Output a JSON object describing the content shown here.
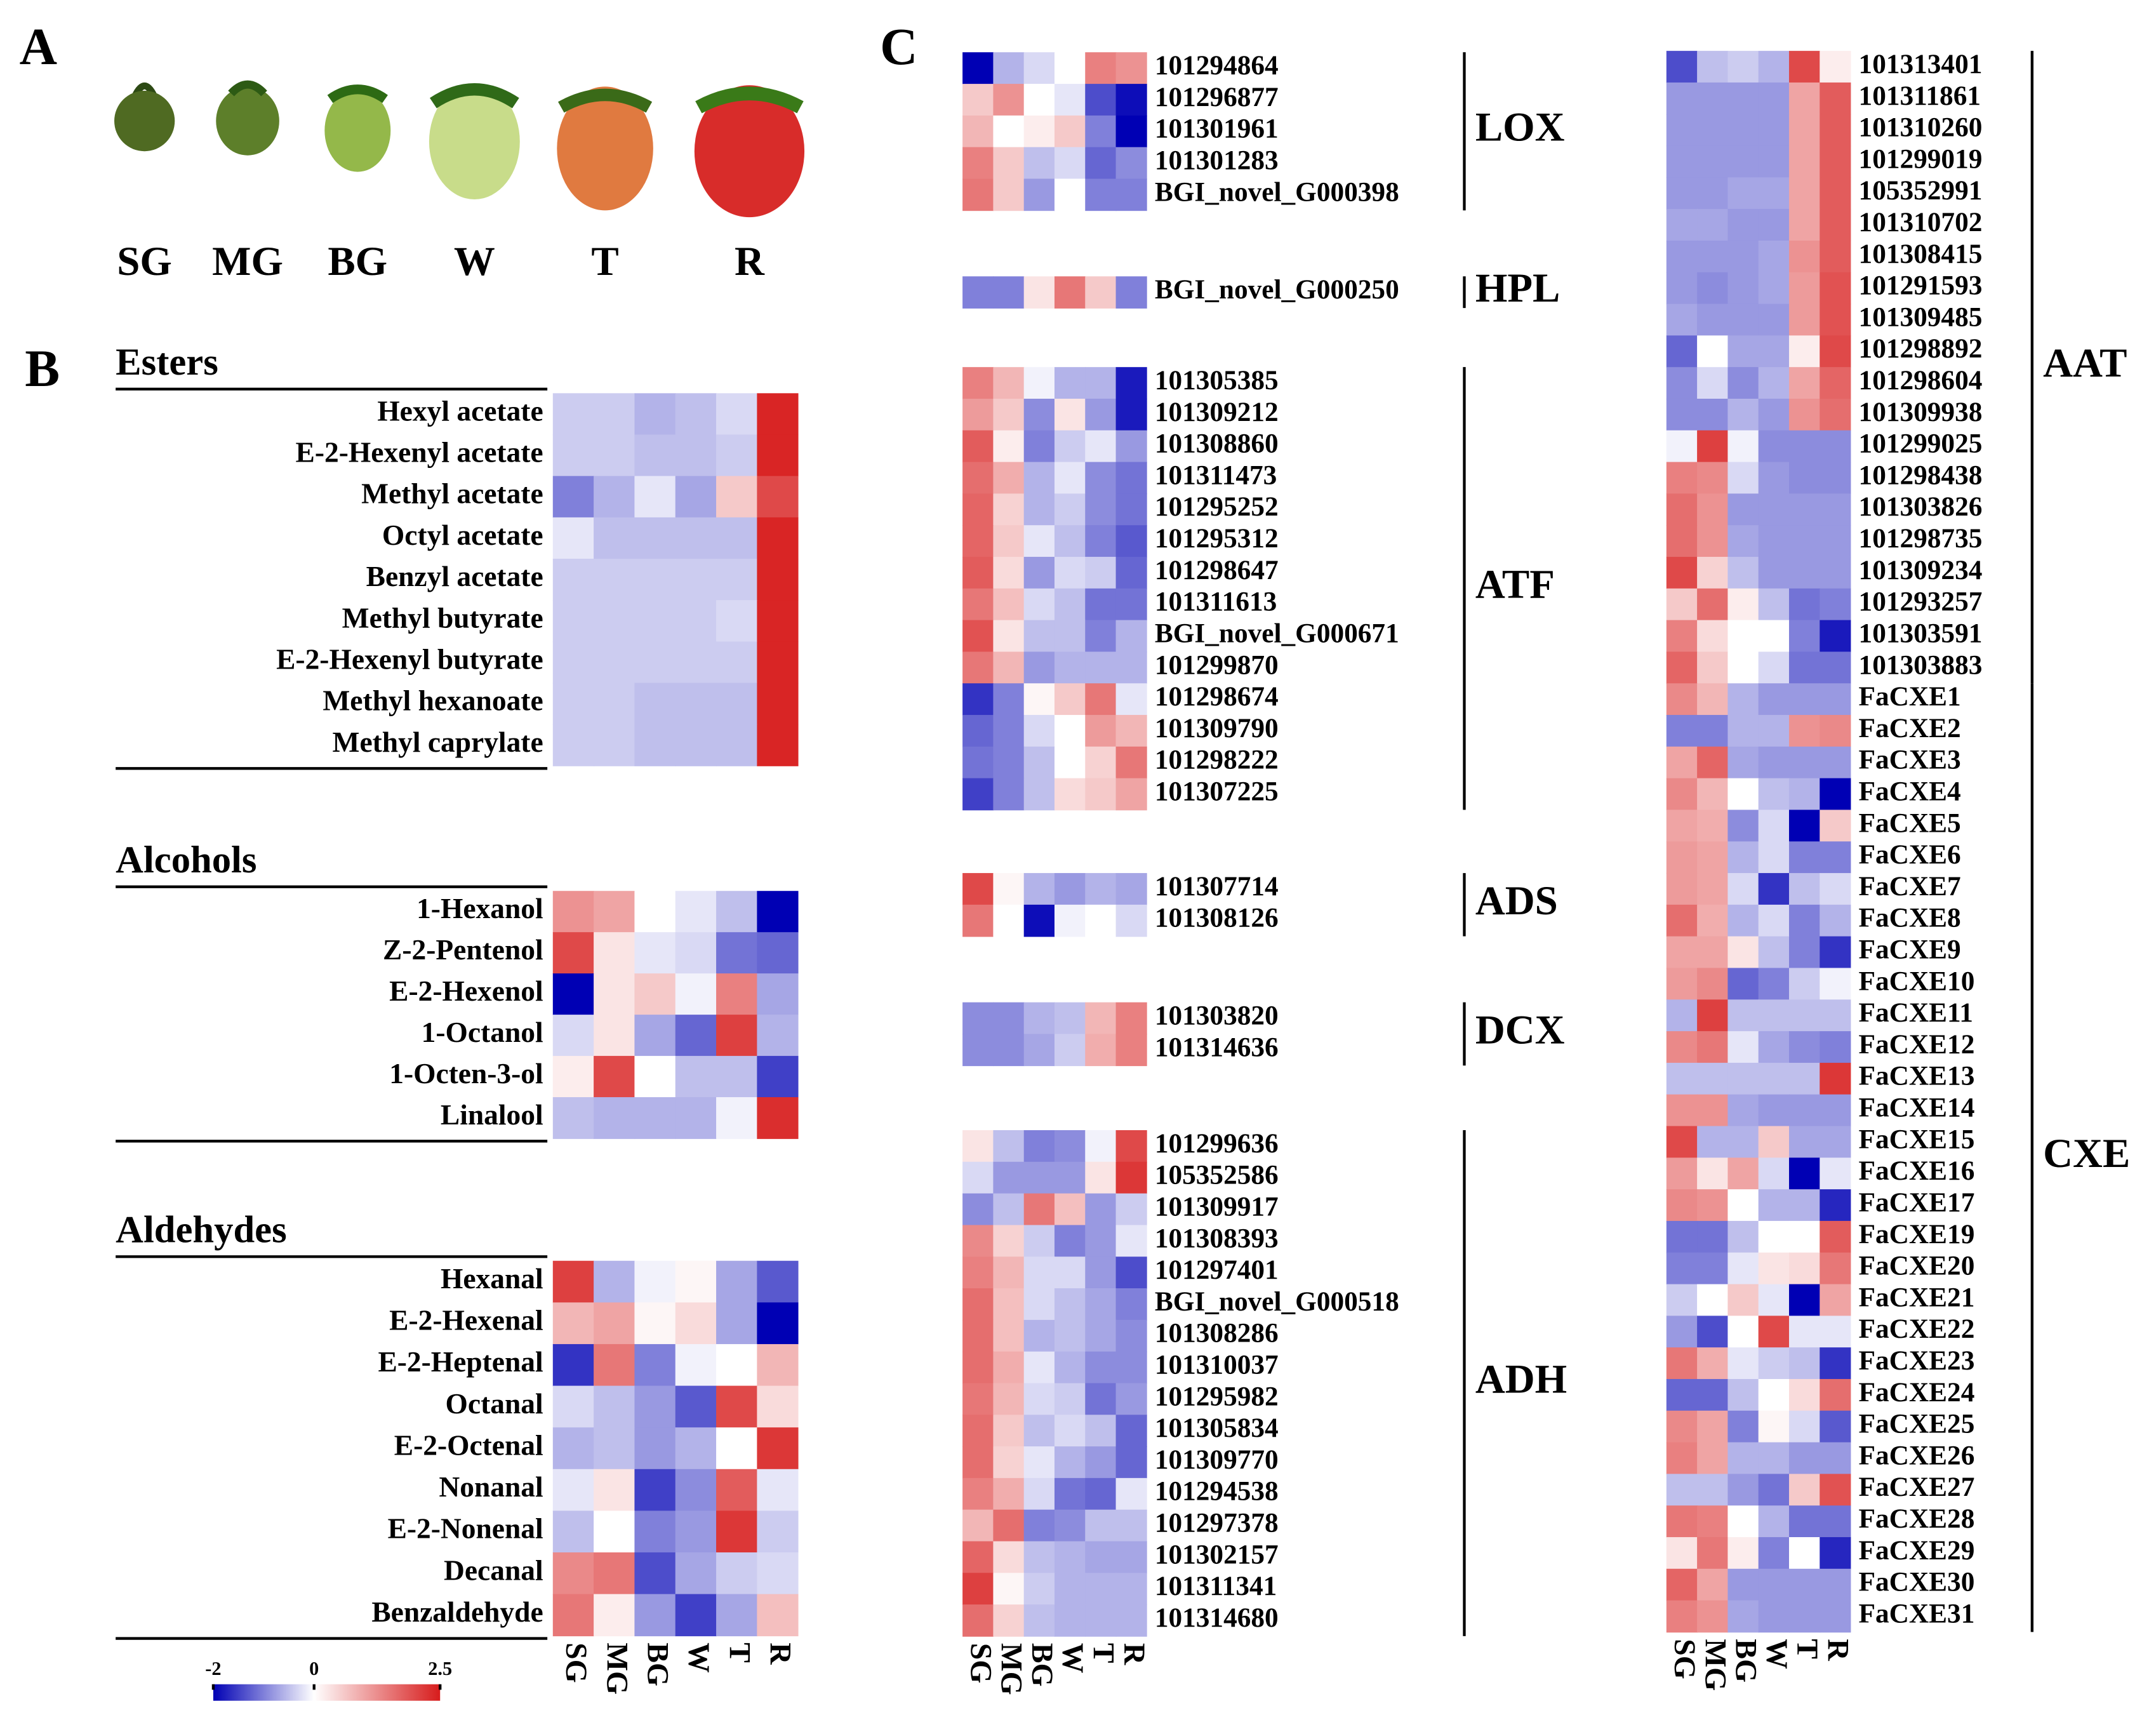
{
  "panels": [
    "A",
    "B",
    "C"
  ],
  "stages": [
    "SG",
    "MG",
    "BG",
    "W",
    "T",
    "R"
  ],
  "colorbar": {
    "lim": [
      -2,
      2.5
    ],
    "ticks": [
      -2,
      0,
      2.5
    ],
    "colors": {
      "low": "#0000b4",
      "mid": "#ffffff",
      "high": "#d71c1c"
    }
  },
  "chart_data": [
    {
      "type": "heatmap",
      "title": "Esters",
      "rows": [
        "Hexyl acetate",
        "E-2-Hexenyl acetate",
        "Methyl acetate",
        "Octyl acetate",
        "Benzyl acetate",
        "Methyl butyrate",
        "E-2-Hexenyl butyrate",
        "Methyl hexanoate",
        "Methyl caprylate"
      ],
      "values": [
        [
          -0.4,
          -0.4,
          -0.6,
          -0.5,
          -0.3,
          2.4
        ],
        [
          -0.4,
          -0.4,
          -0.5,
          -0.5,
          -0.4,
          2.4
        ],
        [
          -1.0,
          -0.6,
          -0.2,
          -0.7,
          0.6,
          2.0
        ],
        [
          -0.2,
          -0.5,
          -0.5,
          -0.5,
          -0.5,
          2.4
        ],
        [
          -0.4,
          -0.4,
          -0.4,
          -0.4,
          -0.4,
          2.4
        ],
        [
          -0.4,
          -0.4,
          -0.4,
          -0.4,
          -0.3,
          2.4
        ],
        [
          -0.4,
          -0.4,
          -0.4,
          -0.4,
          -0.4,
          2.4
        ],
        [
          -0.4,
          -0.4,
          -0.5,
          -0.5,
          -0.5,
          2.4
        ],
        [
          -0.4,
          -0.4,
          -0.5,
          -0.5,
          -0.5,
          2.4
        ]
      ]
    },
    {
      "type": "heatmap",
      "title": "Alcohols",
      "rows": [
        "1-Hexanol",
        "Z-2-Pentenol",
        "E-2-Hexenol",
        "1-Octanol",
        "1-Octen-3-ol",
        "Linalool"
      ],
      "values": [
        [
          1.2,
          1.0,
          0,
          -0.2,
          -0.5,
          -2.0
        ],
        [
          2.0,
          0.3,
          -0.2,
          -0.3,
          -1.1,
          -1.2
        ],
        [
          -2.0,
          0.3,
          0.6,
          -0.1,
          1.4,
          -0.7
        ],
        [
          -0.3,
          0.3,
          -0.7,
          -1.2,
          2.1,
          -0.6
        ],
        [
          0.2,
          2.0,
          0,
          -0.5,
          -0.5,
          -1.5
        ],
        [
          -0.5,
          -0.6,
          -0.6,
          -0.6,
          -0.1,
          2.3
        ]
      ]
    },
    {
      "type": "heatmap",
      "title": "Aldehydes",
      "rows": [
        "Hexanal",
        "E-2-Hexenal",
        "E-2-Heptenal",
        "Octanal",
        "E-2-Octenal",
        "Nonanal",
        "E-2-Nonenal",
        "Decanal",
        "Benzaldehyde"
      ],
      "columns": [
        "SG",
        "MG",
        "BG",
        "W",
        "T",
        "R"
      ],
      "values": [
        [
          2.1,
          -0.6,
          -0.1,
          0.1,
          -0.7,
          -1.3
        ],
        [
          0.8,
          1.0,
          0.1,
          0.4,
          -0.7,
          -2.0
        ],
        [
          -1.6,
          1.5,
          -1.0,
          -0.1,
          0,
          0.8
        ],
        [
          -0.3,
          -0.5,
          -0.8,
          -1.3,
          2.0,
          0.4
        ],
        [
          -0.6,
          -0.5,
          -0.8,
          -0.6,
          0,
          2.2
        ],
        [
          -0.2,
          0.3,
          -1.5,
          -0.9,
          1.8,
          -0.2
        ],
        [
          -0.5,
          0,
          -1.0,
          -0.8,
          2.2,
          -0.4
        ],
        [
          1.3,
          1.5,
          -1.4,
          -0.7,
          -0.4,
          -0.3
        ],
        [
          1.5,
          0.2,
          -0.8,
          -1.5,
          -0.7,
          0.7
        ]
      ]
    },
    {
      "type": "heatmap",
      "title": "LOX",
      "rows": [
        "101294864",
        "101296877",
        "101301961",
        "101301283",
        "BGI_novel_G000398"
      ],
      "values": [
        [
          -2.0,
          -0.6,
          -0.3,
          0,
          1.4,
          1.2
        ],
        [
          0.6,
          1.2,
          0,
          -0.2,
          -1.4,
          -1.9
        ],
        [
          0.8,
          0,
          0.2,
          0.6,
          -1.0,
          -2.0
        ],
        [
          1.4,
          0.6,
          -0.5,
          -0.3,
          -1.2,
          -0.9
        ],
        [
          1.5,
          0.6,
          -0.8,
          0,
          -1.0,
          -1.0
        ]
      ]
    },
    {
      "type": "heatmap",
      "title": "HPL",
      "rows": [
        "BGI_novel_G000250"
      ],
      "values": [
        [
          -1.0,
          -1.0,
          0.3,
          1.5,
          0.6,
          -1.0
        ]
      ]
    },
    {
      "type": "heatmap",
      "title": "ATF",
      "rows": [
        "101305385",
        "101309212",
        "101308860",
        "101311473",
        "101295252",
        "101295312",
        "101298647",
        "101311613",
        "BGI_novel_G000671",
        "101299870",
        "101298674",
        "101309790",
        "101298222",
        "101307225"
      ],
      "values": [
        [
          1.4,
          0.8,
          -0.1,
          -0.6,
          -0.6,
          -1.8
        ],
        [
          1.1,
          0.6,
          -0.9,
          0.3,
          -0.8,
          -1.8
        ],
        [
          1.8,
          0.2,
          -1.0,
          -0.4,
          -0.2,
          -0.8
        ],
        [
          1.6,
          0.9,
          -0.6,
          -0.2,
          -0.9,
          -1.1
        ],
        [
          1.7,
          0.5,
          -0.6,
          -0.4,
          -0.9,
          -1.1
        ],
        [
          1.7,
          0.6,
          -0.2,
          -0.5,
          -1.0,
          -1.3
        ],
        [
          1.8,
          0.4,
          -0.8,
          -0.3,
          -0.4,
          -1.2
        ],
        [
          1.5,
          0.7,
          -0.3,
          -0.5,
          -1.1,
          -1.1
        ],
        [
          1.9,
          0.3,
          -0.5,
          -0.5,
          -1.0,
          -0.6
        ],
        [
          1.5,
          0.8,
          -0.8,
          -0.6,
          -0.6,
          -0.6
        ],
        [
          -1.6,
          -1.0,
          0.1,
          0.6,
          1.5,
          -0.2
        ],
        [
          -1.2,
          -1.0,
          -0.3,
          0,
          1.1,
          0.8
        ],
        [
          -1.1,
          -1.0,
          -0.5,
          0,
          0.5,
          1.5
        ],
        [
          -1.5,
          -1.0,
          -0.5,
          0.4,
          0.6,
          1.0
        ]
      ]
    },
    {
      "type": "heatmap",
      "title": "ADS",
      "rows": [
        "101307714",
        "101308126"
      ],
      "values": [
        [
          2.0,
          0.1,
          -0.6,
          -0.8,
          -0.6,
          -0.7
        ],
        [
          1.5,
          0,
          -1.9,
          -0.1,
          0,
          -0.3
        ]
      ]
    },
    {
      "type": "heatmap",
      "title": "DCX",
      "rows": [
        "101303820",
        "101314636"
      ],
      "values": [
        [
          -0.9,
          -0.9,
          -0.6,
          -0.5,
          0.8,
          1.4
        ],
        [
          -0.9,
          -0.9,
          -0.7,
          -0.4,
          0.9,
          1.4
        ]
      ]
    },
    {
      "type": "heatmap",
      "title": "ADH",
      "rows": [
        "101299636",
        "105352586",
        "101309917",
        "101308393",
        "101297401",
        "BGI_novel_G000518",
        "101308286",
        "101310037",
        "101295982",
        "101305834",
        "101309770",
        "101294538",
        "101297378",
        "101302157",
        "101311341",
        "101314680"
      ],
      "columns": [
        "SG",
        "MG",
        "BG",
        "W",
        "T",
        "R"
      ],
      "values": [
        [
          0.3,
          -0.5,
          -1.0,
          -0.9,
          -0.1,
          2.0
        ],
        [
          -0.3,
          -0.8,
          -0.8,
          -0.8,
          0.3,
          2.2
        ],
        [
          -0.9,
          -0.5,
          1.5,
          0.7,
          -0.8,
          -0.4
        ],
        [
          1.3,
          0.5,
          -0.4,
          -1.0,
          -0.8,
          -0.2
        ],
        [
          1.4,
          0.8,
          -0.3,
          -0.3,
          -0.8,
          -1.4
        ],
        [
          1.6,
          0.7,
          -0.3,
          -0.5,
          -0.7,
          -1.0
        ],
        [
          1.6,
          0.7,
          -0.6,
          -0.5,
          -0.7,
          -0.9
        ],
        [
          1.6,
          0.9,
          -0.2,
          -0.6,
          -0.9,
          -0.9
        ],
        [
          1.5,
          0.8,
          -0.3,
          -0.4,
          -1.1,
          -0.8
        ],
        [
          1.6,
          0.6,
          -0.5,
          -0.3,
          -0.5,
          -1.2
        ],
        [
          1.6,
          0.5,
          -0.2,
          -0.6,
          -0.8,
          -1.2
        ],
        [
          1.4,
          0.9,
          -0.3,
          -1.1,
          -1.2,
          -0.2
        ],
        [
          0.8,
          1.6,
          -1.0,
          -0.9,
          -0.5,
          -0.5
        ],
        [
          1.7,
          0.4,
          -0.5,
          -0.6,
          -0.7,
          -0.7
        ],
        [
          2.1,
          0.1,
          -0.4,
          -0.6,
          -0.6,
          -0.6
        ],
        [
          1.6,
          0.5,
          -0.5,
          -0.6,
          -0.6,
          -0.6
        ]
      ]
    },
    {
      "type": "heatmap",
      "title": "AAT",
      "rows": [
        "101313401",
        "101311861",
        "101310260",
        "101299019",
        "105352991",
        "101310702",
        "101308415",
        "101291593",
        "101309485",
        "101298892",
        "101298604",
        "101309938",
        "101299025",
        "101298438",
        "101303826",
        "101298735",
        "101309234",
        "101293257",
        "101303591",
        "101303883"
      ],
      "values": [
        [
          -1.4,
          -0.5,
          -0.4,
          -0.6,
          2.0,
          0.2
        ],
        [
          -0.8,
          -0.8,
          -0.8,
          -0.8,
          1.0,
          1.8
        ],
        [
          -0.8,
          -0.8,
          -0.8,
          -0.8,
          1.0,
          1.8
        ],
        [
          -0.8,
          -0.8,
          -0.8,
          -0.8,
          1.0,
          1.8
        ],
        [
          -0.8,
          -0.8,
          -0.7,
          -0.7,
          1.0,
          1.8
        ],
        [
          -0.7,
          -0.7,
          -0.8,
          -0.8,
          1.0,
          1.8
        ],
        [
          -0.8,
          -0.8,
          -0.8,
          -0.7,
          1.2,
          1.8
        ],
        [
          -0.8,
          -0.9,
          -0.8,
          -0.7,
          1.1,
          1.9
        ],
        [
          -0.7,
          -0.8,
          -0.8,
          -0.8,
          1.1,
          1.9
        ],
        [
          -1.2,
          0,
          -0.7,
          -0.7,
          0.2,
          2.0
        ],
        [
          -0.9,
          -0.3,
          -0.9,
          -0.6,
          1.0,
          1.7
        ],
        [
          -0.9,
          -0.9,
          -0.6,
          -0.8,
          1.2,
          1.6
        ],
        [
          -0.1,
          2.1,
          -0.1,
          -0.9,
          -0.9,
          -0.9
        ],
        [
          1.4,
          1.3,
          -0.3,
          -0.8,
          -0.9,
          -0.9
        ],
        [
          1.6,
          1.2,
          -0.8,
          -0.8,
          -0.8,
          -0.8
        ],
        [
          1.6,
          1.2,
          -0.7,
          -0.8,
          -0.8,
          -0.8
        ],
        [
          2.0,
          0.5,
          -0.5,
          -0.8,
          -0.8,
          -0.8
        ],
        [
          0.6,
          1.6,
          0.2,
          -0.5,
          -1.1,
          -1.0
        ],
        [
          1.4,
          0.4,
          0,
          0,
          -1.0,
          -1.8
        ],
        [
          1.7,
          0.6,
          0,
          -0.3,
          -1.1,
          -1.1
        ]
      ]
    },
    {
      "type": "heatmap",
      "title": "CXE",
      "title_color": "#e00000",
      "rows": [
        "FaCXE1",
        "FaCXE2",
        "FaCXE3",
        "FaCXE4",
        "FaCXE5",
        "FaCXE6",
        "FaCXE7",
        "FaCXE8",
        "FaCXE9",
        "FaCXE10",
        "FaCXE11",
        "FaCXE12",
        "FaCXE13",
        "FaCXE14",
        "FaCXE15",
        "FaCXE16",
        "FaCXE17",
        "FaCXE19",
        "FaCXE20",
        "FaCXE21",
        "FaCXE22",
        "FaCXE23",
        "FaCXE24",
        "FaCXE25",
        "FaCXE26",
        "FaCXE27",
        "FaCXE28",
        "FaCXE29",
        "FaCXE30",
        "FaCXE31"
      ],
      "columns": [
        "SG",
        "MG",
        "BG",
        "W",
        "T",
        "R"
      ],
      "values": [
        [
          1.3,
          0.8,
          -0.6,
          -0.8,
          -0.8,
          -0.8
        ],
        [
          -1.0,
          -1.0,
          -0.6,
          -0.6,
          1.2,
          1.3
        ],
        [
          1.0,
          1.7,
          -0.7,
          -0.8,
          -0.8,
          -0.8
        ],
        [
          1.3,
          0.8,
          0,
          -0.5,
          -0.6,
          -2.0
        ],
        [
          1.0,
          0.9,
          -0.9,
          -0.3,
          -2.0,
          0.6
        ],
        [
          1.1,
          1.0,
          -0.6,
          -0.3,
          -1.0,
          -1.0
        ],
        [
          1.1,
          1.0,
          -0.3,
          -1.6,
          -0.5,
          -0.3
        ],
        [
          1.6,
          0.9,
          -0.6,
          -0.3,
          -1.0,
          -0.6
        ],
        [
          1.0,
          1.0,
          0.3,
          -0.5,
          -1.0,
          -1.6
        ],
        [
          1.1,
          1.3,
          -1.2,
          -1.0,
          -0.4,
          -0.1
        ],
        [
          -0.6,
          2.1,
          -0.5,
          -0.5,
          -0.5,
          -0.5
        ],
        [
          1.3,
          1.5,
          -0.2,
          -0.7,
          -0.9,
          -1.0
        ],
        [
          -0.5,
          -0.5,
          -0.5,
          -0.5,
          -0.5,
          2.2
        ],
        [
          1.2,
          1.2,
          -0.7,
          -0.8,
          -0.8,
          -0.8
        ],
        [
          2.0,
          -0.6,
          -0.6,
          0.6,
          -0.7,
          -0.7
        ],
        [
          1.1,
          0.3,
          1.0,
          -0.3,
          -2.0,
          -0.2
        ],
        [
          1.3,
          1.2,
          0,
          -0.6,
          -0.6,
          -1.7
        ],
        [
          -1.1,
          -1.1,
          -0.5,
          0,
          0,
          1.8
        ],
        [
          -1.0,
          -1.0,
          -0.2,
          0.3,
          0.4,
          1.5
        ],
        [
          -0.4,
          0,
          0.6,
          -0.2,
          -2.0,
          1.0
        ],
        [
          -0.8,
          -1.4,
          0,
          2.0,
          -0.2,
          -0.2
        ],
        [
          1.5,
          0.9,
          -0.2,
          -0.4,
          -0.5,
          -1.6
        ],
        [
          -1.2,
          -1.2,
          -0.5,
          0,
          0.4,
          1.6
        ],
        [
          1.3,
          1.0,
          -1.0,
          0.1,
          -0.3,
          -1.3
        ],
        [
          1.4,
          1.0,
          -0.6,
          -0.6,
          -0.8,
          -0.8
        ],
        [
          -0.5,
          -0.5,
          -0.8,
          -1.1,
          0.6,
          1.9
        ],
        [
          1.5,
          1.4,
          0,
          -0.6,
          -1.1,
          -1.1
        ],
        [
          0.3,
          1.5,
          0.2,
          -1.0,
          0,
          -1.7
        ],
        [
          1.7,
          1.0,
          -0.8,
          -0.8,
          -0.8,
          -0.8
        ],
        [
          1.4,
          1.2,
          -0.7,
          -0.8,
          -0.8,
          -0.8
        ]
      ]
    }
  ]
}
